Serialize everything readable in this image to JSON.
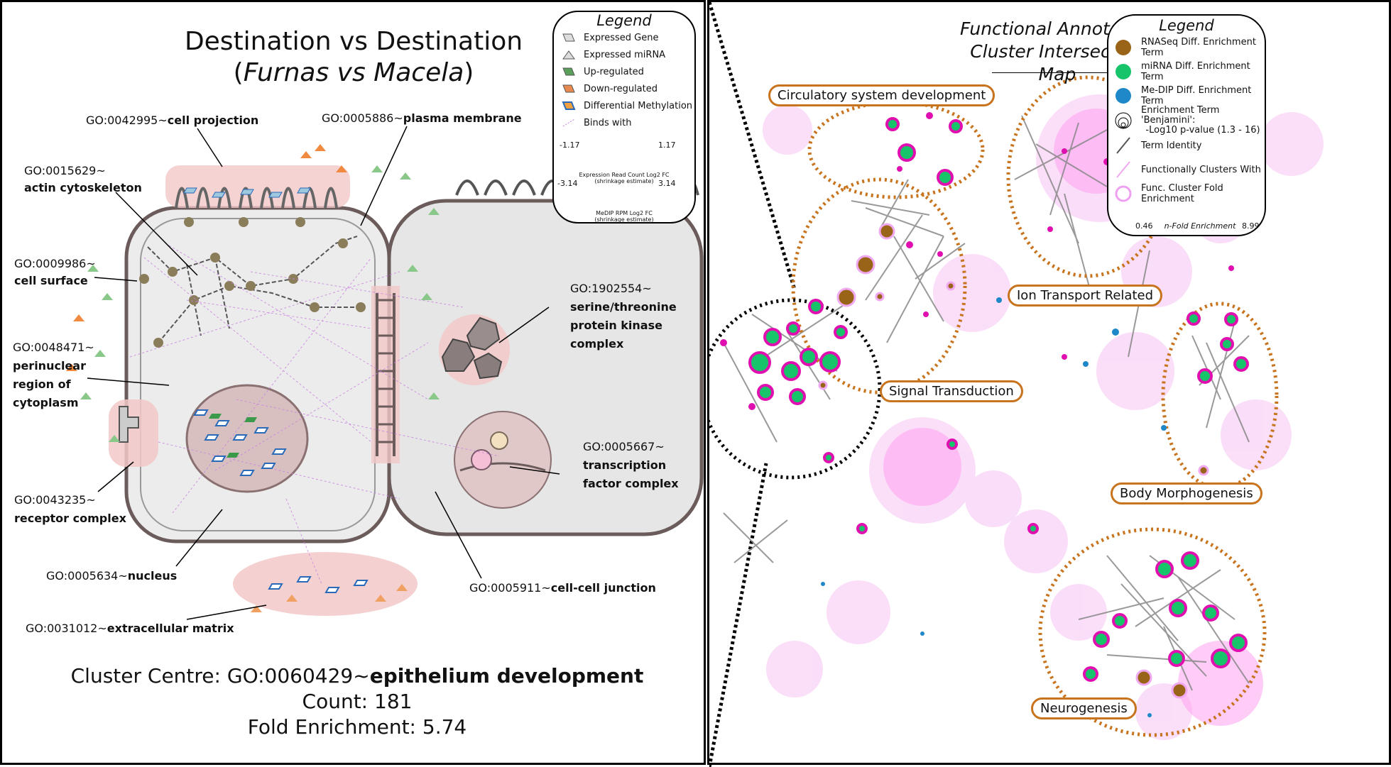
{
  "left": {
    "title_line1": "Destination vs Destination",
    "title_open": "(",
    "title_italic": "Furnas vs Macela",
    "title_close": ")",
    "go_labels": [
      {
        "id": "GO:0042995~",
        "name": "cell projection"
      },
      {
        "id": "GO:0005886~",
        "name": "plasma membrane"
      },
      {
        "id": "GO:0015629~",
        "name": "actin cytoskeleton"
      },
      {
        "id": "GO:0009986~",
        "name": "cell surface"
      },
      {
        "id": "GO:0048471~",
        "name_lines": [
          "perinuclear",
          "region of",
          "cytoplasm"
        ]
      },
      {
        "id": "GO:1902554~",
        "name_lines": [
          "serine/threonine",
          "protein kinase",
          "complex"
        ]
      },
      {
        "id": "GO:0005667~",
        "name_lines": [
          "transcription",
          "factor complex"
        ]
      },
      {
        "id": "GO:0043235~",
        "name": "receptor complex"
      },
      {
        "id": "GO:0005634~",
        "name": "nucleus"
      },
      {
        "id": "GO:0005911~",
        "name": "cell-cell junction"
      },
      {
        "id": "GO:0031012~",
        "name": "extracellular matrix"
      }
    ],
    "legend": {
      "title": "Legend",
      "items": [
        "Expressed Gene",
        "Expressed miRNA",
        "Up-regulated",
        "Down-regulated",
        "Differential Methylation",
        "Binds with"
      ],
      "expr_gradient": {
        "min": "-1.17",
        "max": "1.17",
        "caption1": "Expression Read Count Log2 FC",
        "caption2": "(shrinkage estimate)",
        "colors": [
          "#f07a1a",
          "#f2f2f2",
          "#2e9a2e"
        ]
      },
      "medip_gradient": {
        "min": "-3.14",
        "max": "3.14",
        "caption1": "MeDIP RPM Log2 FC",
        "caption2": "(shrinkage estimate)",
        "colors": [
          "#2673d6",
          "#f2f2f2",
          "#2673d6"
        ]
      }
    },
    "cluster_centre_prefix": "Cluster Centre: GO:0060429~",
    "cluster_centre_name": "epithelium development",
    "count_text": "Count: 181",
    "fold_text": "Fold Enrichment: 5.74"
  },
  "right": {
    "title_line1": "Functional Annotation",
    "title_line2": "Cluster Intersection Map",
    "clusters": [
      "Circulatory system development",
      "Ion Transport Related",
      "Signal Transduction",
      "Body Morphogenesis",
      "Neurogenesis"
    ],
    "legend": {
      "title": "Legend",
      "items": [
        "RNASeq Diff. Enrichment Term",
        "miRNA Diff. Enrichment Term",
        "Me-DIP Diff. Enrichment Term",
        "Enrichment Term 'Benjamini':",
        "-Log10 p-value (1.3 - 16)",
        "Term Identity",
        "Functionally Clusters With",
        "Func. Cluster Fold Enrichment"
      ],
      "fold_min": "0.46",
      "fold_label": "n-Fold Enrichment",
      "fold_max": "8.99",
      "colors": {
        "rnaseq": "#9a6418",
        "mirna": "#18c46a",
        "medip": "#1e88c8",
        "cluster_ring": "#d878e0",
        "fold_low": "#d8ffff",
        "fold_high": "#ff10c8"
      }
    }
  },
  "colors": {
    "accent_orange": "#c8741e",
    "network_pink": "#f0a8f0",
    "term_gray": "#909090",
    "cell_fill": "#e8e8e8",
    "highlight_pink": "#f2c8c8"
  }
}
